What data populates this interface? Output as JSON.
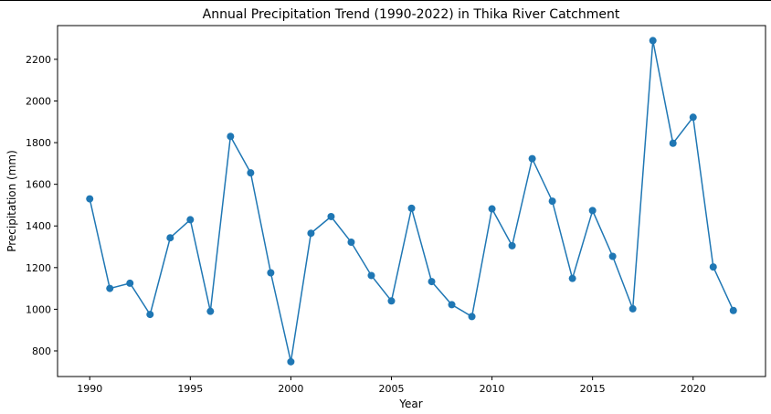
{
  "chart_data": {
    "type": "line",
    "title": "Annual Precipitation Trend (1990-2022) in Thika River Catchment",
    "xlabel": "Year",
    "ylabel": "Precipitation (mm)",
    "xlim": [
      1988.4,
      2023.6
    ],
    "ylim": [
      677,
      2362
    ],
    "xticks": [
      1990,
      1995,
      2000,
      2005,
      2010,
      2015,
      2020
    ],
    "yticks": [
      800,
      1000,
      1200,
      1400,
      1600,
      1800,
      2000,
      2200
    ],
    "grid": false,
    "marker": "circle",
    "color": "#1f77b4",
    "series": [
      {
        "x": [
          1990,
          1991,
          1992,
          1993,
          1994,
          1995,
          1996,
          1997,
          1998,
          1999,
          2000,
          2001,
          2002,
          2003,
          2004,
          2005,
          2006,
          2007,
          2008,
          2009,
          2010,
          2011,
          2012,
          2013,
          2014,
          2015,
          2016,
          2017,
          2018,
          2019,
          2020,
          2021,
          2022
        ],
        "values": [
          1530,
          1100,
          1125,
          975,
          1343,
          1430,
          990,
          1830,
          1655,
          1175,
          748,
          1365,
          1445,
          1322,
          1162,
          1040,
          1485,
          1133,
          1022,
          965,
          1482,
          1305,
          1723,
          1519,
          1148,
          1474,
          1254,
          1002,
          2290,
          1797,
          1922,
          1203,
          994
        ]
      }
    ]
  }
}
